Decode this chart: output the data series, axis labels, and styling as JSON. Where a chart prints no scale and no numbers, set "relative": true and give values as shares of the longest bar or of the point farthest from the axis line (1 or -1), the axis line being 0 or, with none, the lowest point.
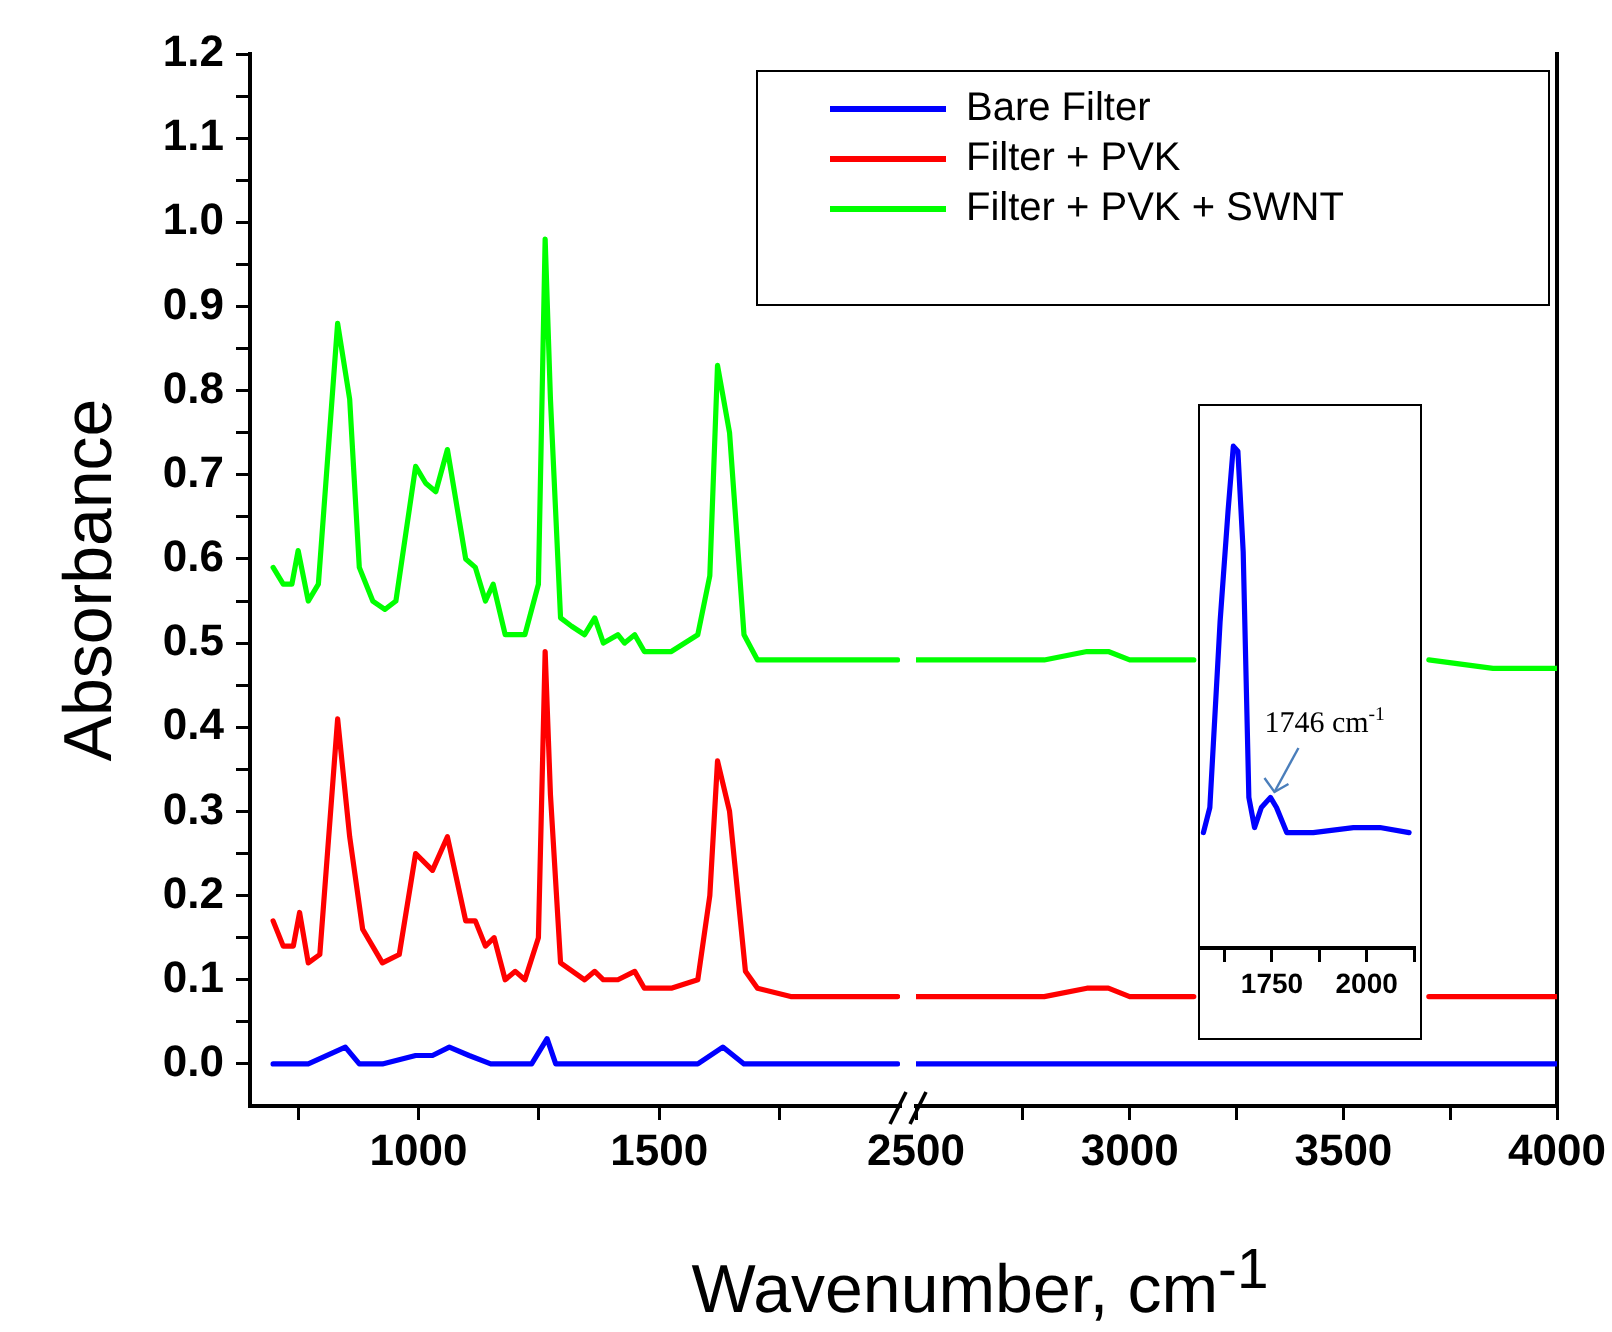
{
  "chart_data": [
    {
      "type": "line",
      "xlabel": "Wavenumber, cm$^{-1}$",
      "ylabel": "Absorbance",
      "legend": "top right",
      "marker": "none",
      "xlim": [
        650,
        2000
      ],
      "ylim": [
        -0.05,
        1.2
      ],
      "xticks": [
        {
          "value": 750,
          "label": null
        },
        1000,
        {
          "value": 1250,
          "label": null
        },
        1500,
        {
          "value": 1750,
          "label": null
        }
      ],
      "yticks": [
        {
          "value": 0,
          "label": "0.0"
        },
        {
          "value": 0.05,
          "label": null
        },
        {
          "value": 0.1,
          "label": "0.1"
        },
        {
          "value": 0.15,
          "label": null
        },
        {
          "value": 0.2,
          "label": "0.2"
        },
        {
          "value": 0.25,
          "label": null
        },
        {
          "value": 0.3,
          "label": "0.3"
        },
        {
          "value": 0.35,
          "label": null
        },
        {
          "value": 0.4,
          "label": "0.4"
        },
        {
          "value": 0.45,
          "label": null
        },
        {
          "value": 0.5,
          "label": "0.5"
        },
        {
          "value": 0.55,
          "label": null
        },
        {
          "value": 0.6,
          "label": "0.6"
        },
        {
          "value": 0.65,
          "label": null
        },
        {
          "value": 0.7,
          "label": "0.7"
        },
        {
          "value": 0.75,
          "label": null
        },
        {
          "value": 0.8,
          "label": "0.8"
        },
        {
          "value": 0.85,
          "label": null
        },
        {
          "value": 0.9,
          "label": "0.9"
        },
        {
          "value": 0.95,
          "label": null
        },
        {
          "value": 1,
          "label": "1.0"
        },
        {
          "value": 1.05,
          "label": null
        },
        {
          "value": 1.1,
          "label": "1.1"
        },
        {
          "value": 1.15,
          "label": null
        },
        {
          "value": 1.2,
          "label": "1.2"
        }
      ],
      "series": [
        {
          "name": "Bare Filter",
          "color": "#0000ff",
          "x": [
            698,
            771,
            848,
            877,
            925,
            994,
            1029,
            1064,
            1105,
            1150,
            1235,
            1267,
            1285,
            1456,
            1580,
            1632,
            1676,
            1965,
            1995
          ],
          "values": [
            0.0,
            0.0,
            0.02,
            0.0,
            0.0,
            0.01,
            0.01,
            0.02,
            0.01,
            0.0,
            0.0,
            0.03,
            0.0,
            0.0,
            0.0,
            0.02,
            0.0,
            0.0,
            0.0
          ]
        },
        {
          "name": "Filter + PVK",
          "color": "#ff0000",
          "x": [
            698,
            719,
            740,
            753,
            771,
            795,
            832,
            857,
            884,
            925,
            960,
            994,
            1029,
            1060,
            1098,
            1118,
            1139,
            1157,
            1180,
            1201,
            1221,
            1249,
            1263,
            1274,
            1295,
            1345,
            1366,
            1384,
            1414,
            1449,
            1469,
            1525,
            1580,
            1605,
            1621,
            1646,
            1679,
            1704,
            1773,
            1965,
            1995
          ],
          "values": [
            0.17,
            0.14,
            0.14,
            0.18,
            0.12,
            0.13,
            0.41,
            0.27,
            0.16,
            0.12,
            0.13,
            0.25,
            0.23,
            0.27,
            0.17,
            0.17,
            0.14,
            0.15,
            0.1,
            0.11,
            0.1,
            0.15,
            0.49,
            0.32,
            0.12,
            0.1,
            0.11,
            0.1,
            0.1,
            0.11,
            0.09,
            0.09,
            0.1,
            0.2,
            0.36,
            0.3,
            0.11,
            0.09,
            0.08,
            0.08,
            0.08
          ]
        },
        {
          "name": "Filter + PVK + SWNT",
          "color": "#00ff00",
          "x": [
            698,
            719,
            737,
            750,
            771,
            792,
            832,
            857,
            877,
            905,
            930,
            953,
            994,
            1015,
            1036,
            1060,
            1098,
            1118,
            1139,
            1155,
            1180,
            1201,
            1221,
            1249,
            1263,
            1274,
            1295,
            1318,
            1345,
            1366,
            1384,
            1414,
            1428,
            1449,
            1469,
            1525,
            1580,
            1605,
            1621,
            1646,
            1676,
            1704,
            1773,
            1965,
            1995
          ],
          "values": [
            0.59,
            0.57,
            0.57,
            0.61,
            0.55,
            0.57,
            0.88,
            0.79,
            0.59,
            0.55,
            0.54,
            0.55,
            0.71,
            0.69,
            0.68,
            0.73,
            0.6,
            0.59,
            0.55,
            0.57,
            0.51,
            0.51,
            0.51,
            0.57,
            0.98,
            0.79,
            0.53,
            0.52,
            0.51,
            0.53,
            0.5,
            0.51,
            0.5,
            0.51,
            0.49,
            0.49,
            0.51,
            0.58,
            0.83,
            0.75,
            0.51,
            0.48,
            0.48,
            0.48,
            0.48
          ]
        }
      ]
    },
    {
      "type": "line",
      "tick_labels": "x",
      "marker": "none",
      "xlim": [
        2500,
        4000
      ],
      "ylim": [
        -0.05,
        1.2
      ],
      "xticks": [
        2500,
        {
          "value": 2750,
          "label": null
        },
        3000,
        {
          "value": 3250,
          "label": null
        },
        3500,
        {
          "value": 3750,
          "label": null
        },
        4000
      ],
      "x": [
        2500,
        2700,
        2800,
        2900,
        2950,
        3000,
        3100,
        3150,
        3400,
        3700,
        3850,
        4000
      ],
      "series": [
        {
          "color": "#0000ff",
          "values": [
            0.0,
            0.0,
            0.0,
            0.0,
            0.0,
            0.0,
            0.0,
            0.0,
            0.0,
            0.0,
            0.0,
            0.0
          ]
        },
        {
          "color": "#ff0000",
          "values": [
            0.08,
            0.08,
            0.08,
            0.09,
            0.09,
            0.08,
            0.08,
            0.08,
            null,
            0.08,
            0.08,
            0.08
          ]
        },
        {
          "color": "#00ff00",
          "values": [
            0.48,
            0.48,
            0.48,
            0.49,
            0.49,
            0.48,
            0.48,
            0.48,
            null,
            0.48,
            0.47,
            0.47
          ]
        }
      ]
    },
    {
      "type": "line",
      "tick_labels": "x",
      "relative": true,
      "marker": "none",
      "xlim": [
        1560,
        2125
      ],
      "xticks": [
        {
          "value": 1625,
          "label": null
        },
        1750,
        {
          "value": 1875,
          "label": null
        },
        2000,
        {
          "value": 2125,
          "label": null
        }
      ],
      "annotations": [
        {
          "text": "1746 cm$^{-1}$",
          "x": 1746,
          "y": 0.295
        }
      ],
      "series": [
        {
          "color": "#0000ff",
          "x": [
            1569,
            1586,
            1613,
            1634,
            1648,
            1660,
            1674,
            1689,
            1704,
            1722,
            1746,
            1762,
            1789,
            1859,
            1965,
            2035,
            2112
          ],
          "values": [
            0.23,
            0.28,
            0.65,
            0.87,
            1,
            0.99,
            0.79,
            0.3,
            0.24,
            0.28,
            0.3,
            0.28,
            0.23,
            0.23,
            0.24,
            0.24,
            0.23
          ]
        }
      ]
    }
  ]
}
